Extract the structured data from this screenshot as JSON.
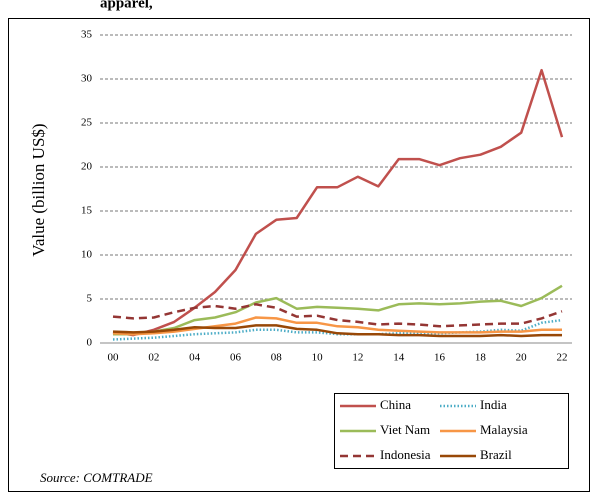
{
  "chart_data": {
    "type": "line",
    "title": "apparel,",
    "ylabel": "Value (billion US$)",
    "source": "Source: COMTRADE",
    "categories": [
      "00",
      null,
      "02",
      null,
      "04",
      null,
      "06",
      null,
      "08",
      null,
      "10",
      null,
      "12",
      null,
      "14",
      null,
      "16",
      null,
      "18",
      null,
      "20",
      null,
      "22"
    ],
    "series": [
      {
        "name": "China",
        "color": "#c0504d",
        "dash": "solid",
        "values": [
          1.2,
          0.9,
          1.5,
          2.4,
          4.0,
          5.8,
          8.3,
          12.4,
          14.0,
          14.2,
          17.7,
          17.7,
          18.9,
          17.8,
          20.9,
          20.9,
          20.2,
          21.0,
          21.4,
          22.3,
          23.9,
          31.0,
          23.4
        ]
      },
      {
        "name": "India",
        "color": "#4bacc6",
        "dash": "dotted",
        "values": [
          0.4,
          0.5,
          0.6,
          0.8,
          1.0,
          1.1,
          1.2,
          1.5,
          1.5,
          1.2,
          1.2,
          1.0,
          1.0,
          1.0,
          1.1,
          1.1,
          1.1,
          1.2,
          1.3,
          1.5,
          1.4,
          2.3,
          2.6
        ]
      },
      {
        "name": "Viet Nam",
        "color": "#9bbb59",
        "dash": "solid",
        "values": [
          1.0,
          1.0,
          1.3,
          1.7,
          2.6,
          2.9,
          3.5,
          4.6,
          5.1,
          3.9,
          4.1,
          4.0,
          3.9,
          3.7,
          4.4,
          4.5,
          4.4,
          4.5,
          4.7,
          4.8,
          4.2,
          5.1,
          6.5
        ]
      },
      {
        "name": "Malaysia",
        "color": "#f79646",
        "dash": "solid",
        "values": [
          1.1,
          1.0,
          1.1,
          1.3,
          1.6,
          1.9,
          2.2,
          2.9,
          2.8,
          2.3,
          2.3,
          1.9,
          1.8,
          1.5,
          1.4,
          1.3,
          1.2,
          1.2,
          1.2,
          1.3,
          1.3,
          1.5,
          1.5
        ]
      },
      {
        "name": "Indonesia",
        "color": "#943634",
        "dash": "dashed",
        "values": [
          3.0,
          2.8,
          2.9,
          3.5,
          4.0,
          4.2,
          3.9,
          4.4,
          4.0,
          3.0,
          3.1,
          2.6,
          2.4,
          2.1,
          2.2,
          2.1,
          1.9,
          2.0,
          2.1,
          2.2,
          2.2,
          2.8,
          3.6
        ]
      },
      {
        "name": "Brazil",
        "color": "#984807",
        "dash": "solid",
        "values": [
          1.3,
          1.2,
          1.3,
          1.5,
          1.8,
          1.7,
          1.7,
          2.0,
          2.0,
          1.6,
          1.5,
          1.1,
          1.0,
          1.0,
          0.9,
          0.9,
          0.8,
          0.8,
          0.8,
          0.9,
          0.8,
          0.9,
          0.9
        ]
      }
    ],
    "ylim": [
      0,
      35
    ],
    "yticks": [
      0,
      5,
      10,
      15,
      20,
      25,
      30,
      35
    ],
    "grid": true,
    "legend": "lower right"
  }
}
